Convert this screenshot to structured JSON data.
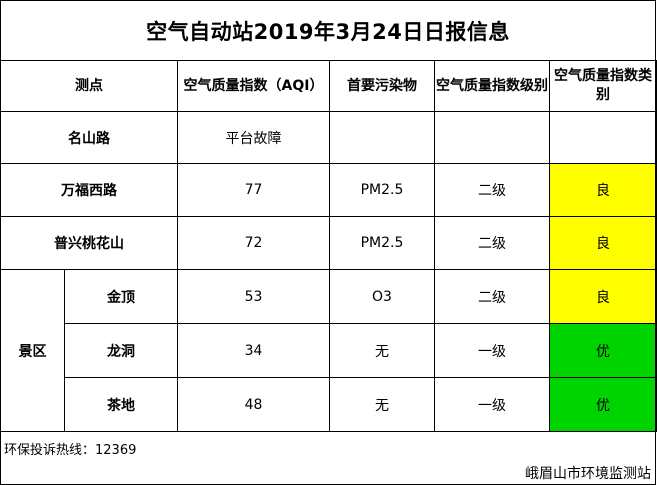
{
  "title": "空气自动站2019年3月24日日报信息",
  "headers": {
    "station": "测点",
    "aqi": "空气质量指数（AQI）",
    "pollutant": "首要污染物",
    "level": "空气质量指数级别",
    "category": "空气质量指数类别"
  },
  "rows": [
    {
      "name": "名山路",
      "aqi": "平台故障",
      "pollutant": "",
      "level": "",
      "category": ""
    },
    {
      "name": "万福西路",
      "aqi": "77",
      "pollutant": "PM2.5",
      "level": "二级",
      "category": "良"
    },
    {
      "name": "普兴桃花山",
      "aqi": "72",
      "pollutant": "PM2.5",
      "level": "二级",
      "category": "良"
    }
  ],
  "scenic_group": "景区",
  "scenic_rows": [
    {
      "name": "金顶",
      "aqi": "53",
      "pollutant": "O3",
      "level": "二级",
      "category": "良"
    },
    {
      "name": "龙洞",
      "aqi": "34",
      "pollutant": "无",
      "level": "一级",
      "category": "优"
    },
    {
      "name": "茶地",
      "aqi": "48",
      "pollutant": "无",
      "level": "一级",
      "category": "优"
    }
  ],
  "colors": {
    "good": "#ffff00",
    "excellent": "#00d400"
  },
  "hotline": "环保投诉热线：12369",
  "org": "峨眉山市环境监测站"
}
